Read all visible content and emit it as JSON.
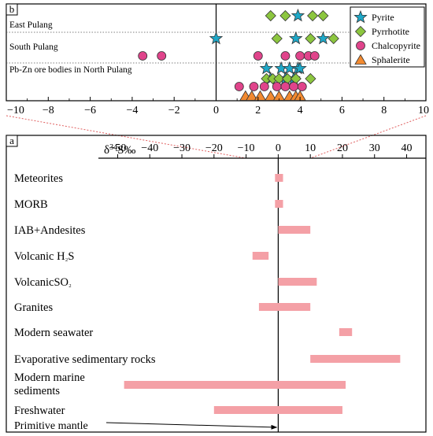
{
  "chart_data": [
    {
      "type": "scatter",
      "panel_label": "b",
      "xlim": [
        -10,
        10
      ],
      "x_ticks": [
        -10,
        -8,
        -6,
        -4,
        -2,
        0,
        2,
        4,
        6,
        8,
        10
      ],
      "x_tick_labels": [
        "−10",
        "−8",
        "−6",
        "−4",
        "−2",
        "0",
        "2",
        "4",
        "6",
        "8",
        "10"
      ],
      "groups": [
        {
          "label": "East Pulang"
        },
        {
          "label": "South Pulang"
        },
        {
          "label": "Pb-Zn ore bodies in North Pulang"
        }
      ],
      "legend_position": "top-right",
      "series": [
        {
          "name": "Pyrite",
          "marker": "star",
          "color": "#1ea8c8",
          "points": [
            {
              "x": 3.9,
              "group": 0,
              "level": 0
            },
            {
              "x": 3.8,
              "group": 1,
              "level": 0
            },
            {
              "x": 0.0,
              "group": 1,
              "level": 0
            },
            {
              "x": 5.1,
              "group": 1,
              "level": 0
            },
            {
              "x": 2.4,
              "group": 2,
              "level": 0
            },
            {
              "x": 2.6,
              "group": 2,
              "level": 1
            },
            {
              "x": 3.1,
              "group": 2,
              "level": 0
            },
            {
              "x": 3.5,
              "group": 2,
              "level": 0
            },
            {
              "x": 3.9,
              "group": 2,
              "level": 0
            },
            {
              "x": 3.3,
              "group": 2,
              "level": 1
            },
            {
              "x": 3.7,
              "group": 2,
              "level": 1
            },
            {
              "x": 4.0,
              "group": 2,
              "level": 0
            }
          ]
        },
        {
          "name": "Pyrrhotite",
          "marker": "diamond",
          "color": "#8cc63f",
          "points": [
            {
              "x": 2.6,
              "group": 0,
              "level": 0
            },
            {
              "x": 3.3,
              "group": 0,
              "level": 0
            },
            {
              "x": 4.6,
              "group": 0,
              "level": 0
            },
            {
              "x": 5.1,
              "group": 0,
              "level": 0
            },
            {
              "x": 2.9,
              "group": 1,
              "level": 0
            },
            {
              "x": 4.5,
              "group": 1,
              "level": 0
            },
            {
              "x": 5.6,
              "group": 1,
              "level": 0
            },
            {
              "x": 2.4,
              "group": 2,
              "level": 1
            },
            {
              "x": 2.7,
              "group": 2,
              "level": 1
            },
            {
              "x": 3.0,
              "group": 2,
              "level": 1
            },
            {
              "x": 3.4,
              "group": 2,
              "level": 1
            },
            {
              "x": 3.8,
              "group": 2,
              "level": 1
            },
            {
              "x": 4.5,
              "group": 2,
              "level": 1
            }
          ]
        },
        {
          "name": "Chalcopyrite",
          "marker": "circle",
          "color": "#e0448b",
          "points": [
            {
              "x": -3.5,
              "group": 1,
              "level": 1
            },
            {
              "x": -2.6,
              "group": 1,
              "level": 1
            },
            {
              "x": 2.0,
              "group": 1,
              "level": 1
            },
            {
              "x": 3.3,
              "group": 1,
              "level": 1
            },
            {
              "x": 4.0,
              "group": 1,
              "level": 1
            },
            {
              "x": 4.4,
              "group": 1,
              "level": 1
            },
            {
              "x": 4.7,
              "group": 1,
              "level": 1
            },
            {
              "x": 1.1,
              "group": 2,
              "level": 2
            },
            {
              "x": 1.8,
              "group": 2,
              "level": 2
            },
            {
              "x": 2.3,
              "group": 2,
              "level": 2
            },
            {
              "x": 2.9,
              "group": 2,
              "level": 2
            },
            {
              "x": 3.3,
              "group": 2,
              "level": 2
            },
            {
              "x": 3.7,
              "group": 2,
              "level": 2
            },
            {
              "x": 4.1,
              "group": 2,
              "level": 2
            }
          ]
        },
        {
          "name": "Sphalerite",
          "marker": "triangle",
          "color": "#f28a30",
          "points": [
            {
              "x": 1.4,
              "group": 2,
              "level": 3
            },
            {
              "x": 1.7,
              "group": 2,
              "level": 3
            },
            {
              "x": 2.1,
              "group": 2,
              "level": 3
            },
            {
              "x": 2.6,
              "group": 2,
              "level": 3
            },
            {
              "x": 3.0,
              "group": 2,
              "level": 3
            },
            {
              "x": 3.5,
              "group": 2,
              "level": 3
            },
            {
              "x": 3.8,
              "group": 2,
              "level": 3
            },
            {
              "x": 4.0,
              "group": 2,
              "level": 3
            }
          ]
        }
      ]
    },
    {
      "type": "bar",
      "orientation": "horizontal-range",
      "panel_label": "a",
      "xlabel": "δ³⁴S‰",
      "xlabel_main": "δ",
      "xlabel_sup": "34",
      "xlabel_rest": "S‰",
      "xlim": [
        -56,
        46
      ],
      "x_ticks": [
        -50,
        -40,
        -30,
        -20,
        -10,
        0,
        10,
        20,
        30,
        40
      ],
      "x_tick_labels": [
        "−50",
        "−40",
        "−30",
        "−20",
        "−10",
        "0",
        "10",
        "20",
        "30",
        "40"
      ],
      "bar_color": "#f4a0a6",
      "categories": [
        "Meteorites",
        "MORB",
        "IAB+Andesites",
        "Volcanic H₂S",
        "VolcanicSO₂",
        "Granites",
        "Modern seawater",
        "Evaporative sedimentary rocks",
        "Modern marine sediments",
        "Freshwater"
      ],
      "category_labels": [
        {
          "lines": [
            "Meteorites"
          ]
        },
        {
          "lines": [
            "MORB"
          ]
        },
        {
          "lines": [
            "IAB+Andesites"
          ]
        },
        {
          "lines": [
            "Volcanic H",
            "₂",
            "S"
          ],
          "style": "sub"
        },
        {
          "lines": [
            "VolcanicSO",
            "₂"
          ],
          "style": "sub"
        },
        {
          "lines": [
            "Granites"
          ]
        },
        {
          "lines": [
            "Modern seawater"
          ]
        },
        {
          "lines": [
            "Evaporative sedimentary rocks"
          ]
        },
        {
          "lines": [
            "Modern marine",
            "sediments"
          ],
          "style": "multiline"
        },
        {
          "lines": [
            "Freshwater"
          ]
        }
      ],
      "ranges": [
        [
          -1,
          1.5
        ],
        [
          -1,
          1.5
        ],
        [
          0,
          10
        ],
        [
          -8,
          -3
        ],
        [
          0,
          12
        ],
        [
          -6,
          10
        ],
        [
          19,
          23
        ],
        [
          10,
          38
        ],
        [
          -48,
          21
        ],
        [
          -20,
          20
        ]
      ],
      "annotation": "Primitive mantle"
    }
  ]
}
